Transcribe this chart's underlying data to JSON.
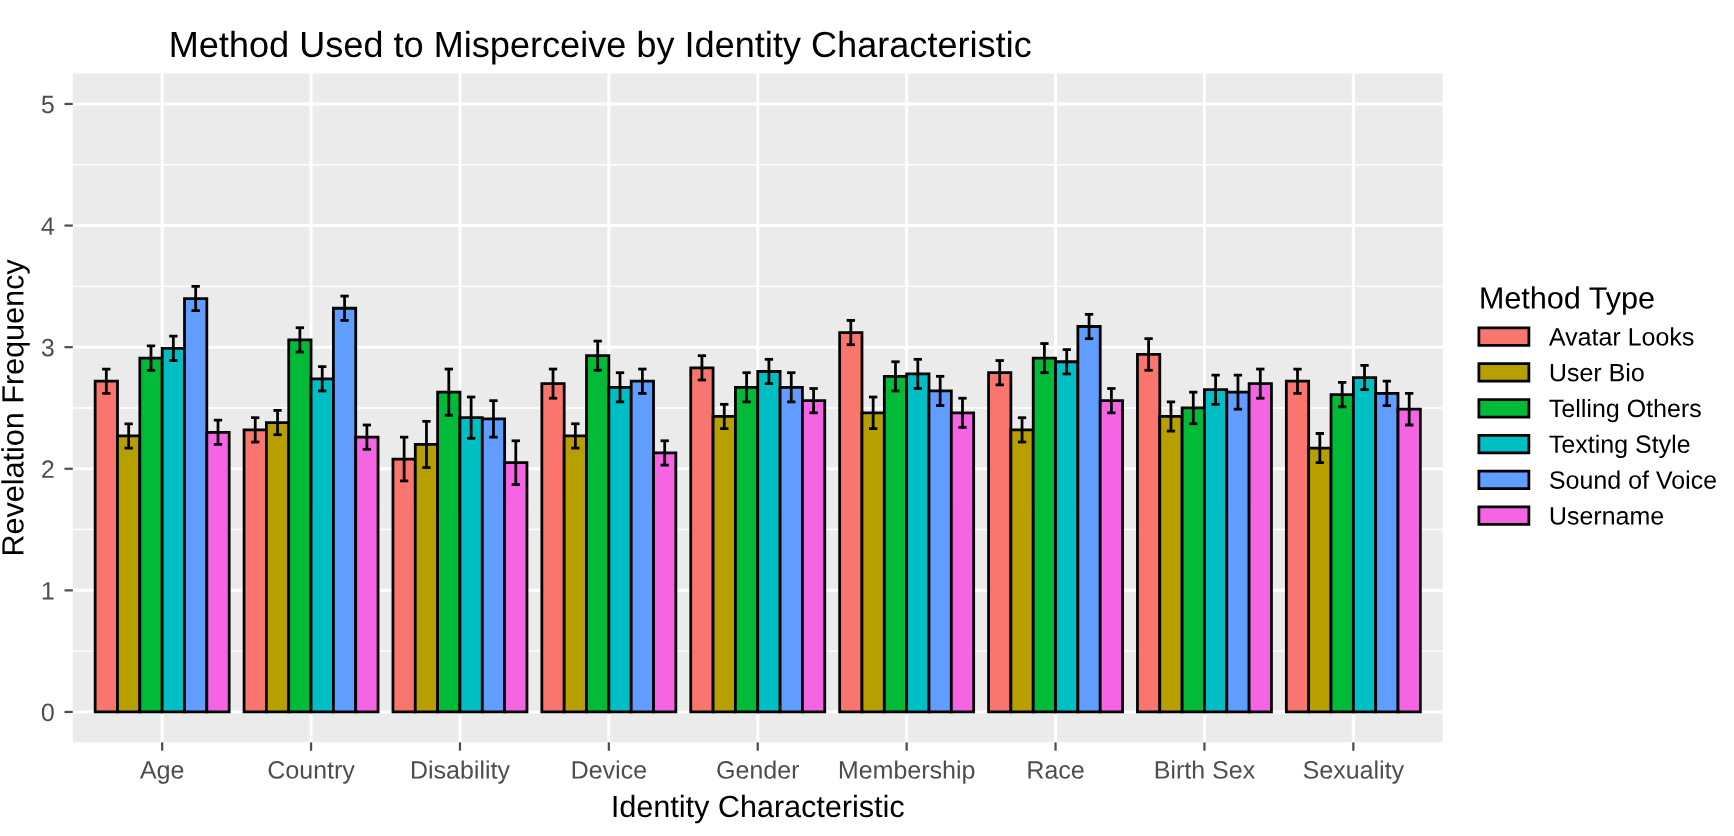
{
  "chart_data": {
    "type": "bar",
    "title": "Method Used to Misperceive by Identity Characteristic",
    "xlabel": "Identity Characteristic",
    "ylabel": "Revelation Frequency",
    "legend_title": "Method Type",
    "legend": "right",
    "categories": [
      "Age",
      "Country",
      "Disability",
      "Device",
      "Gender",
      "Membership",
      "Race",
      "Birth Sex",
      "Sexuality"
    ],
    "series": [
      {
        "name": "Avatar Looks",
        "color": "#f8766d",
        "values": [
          2.72,
          2.32,
          2.08,
          2.7,
          2.83,
          3.12,
          2.79,
          2.94,
          2.72
        ],
        "errors": [
          0.1,
          0.1,
          0.18,
          0.12,
          0.1,
          0.1,
          0.1,
          0.13,
          0.1
        ]
      },
      {
        "name": "User Bio",
        "color": "#b79f00",
        "values": [
          2.27,
          2.38,
          2.2,
          2.27,
          2.43,
          2.46,
          2.32,
          2.43,
          2.17
        ],
        "errors": [
          0.1,
          0.1,
          0.19,
          0.1,
          0.1,
          0.13,
          0.1,
          0.12,
          0.12
        ]
      },
      {
        "name": "Telling Others",
        "color": "#00ba38",
        "values": [
          2.91,
          3.06,
          2.63,
          2.93,
          2.67,
          2.76,
          2.91,
          2.5,
          2.61
        ],
        "errors": [
          0.1,
          0.1,
          0.19,
          0.12,
          0.12,
          0.12,
          0.12,
          0.13,
          0.1
        ]
      },
      {
        "name": "Texting Style",
        "color": "#00bfc4",
        "values": [
          2.99,
          2.74,
          2.42,
          2.67,
          2.8,
          2.78,
          2.88,
          2.65,
          2.75
        ],
        "errors": [
          0.1,
          0.1,
          0.17,
          0.12,
          0.1,
          0.12,
          0.1,
          0.12,
          0.1
        ]
      },
      {
        "name": "Sound of Voice",
        "color": "#619cff",
        "values": [
          3.4,
          3.32,
          2.41,
          2.72,
          2.67,
          2.64,
          3.17,
          2.63,
          2.62
        ],
        "errors": [
          0.1,
          0.1,
          0.15,
          0.1,
          0.12,
          0.12,
          0.1,
          0.14,
          0.1
        ]
      },
      {
        "name": "Username",
        "color": "#f564e3",
        "values": [
          2.3,
          2.26,
          2.05,
          2.13,
          2.56,
          2.46,
          2.56,
          2.7,
          2.49
        ],
        "errors": [
          0.1,
          0.1,
          0.18,
          0.1,
          0.1,
          0.12,
          0.1,
          0.12,
          0.13
        ]
      }
    ],
    "ylim": [
      -0.25,
      5.25
    ],
    "yticks": [
      0,
      1,
      2,
      3,
      4,
      5
    ],
    "grid": true
  }
}
